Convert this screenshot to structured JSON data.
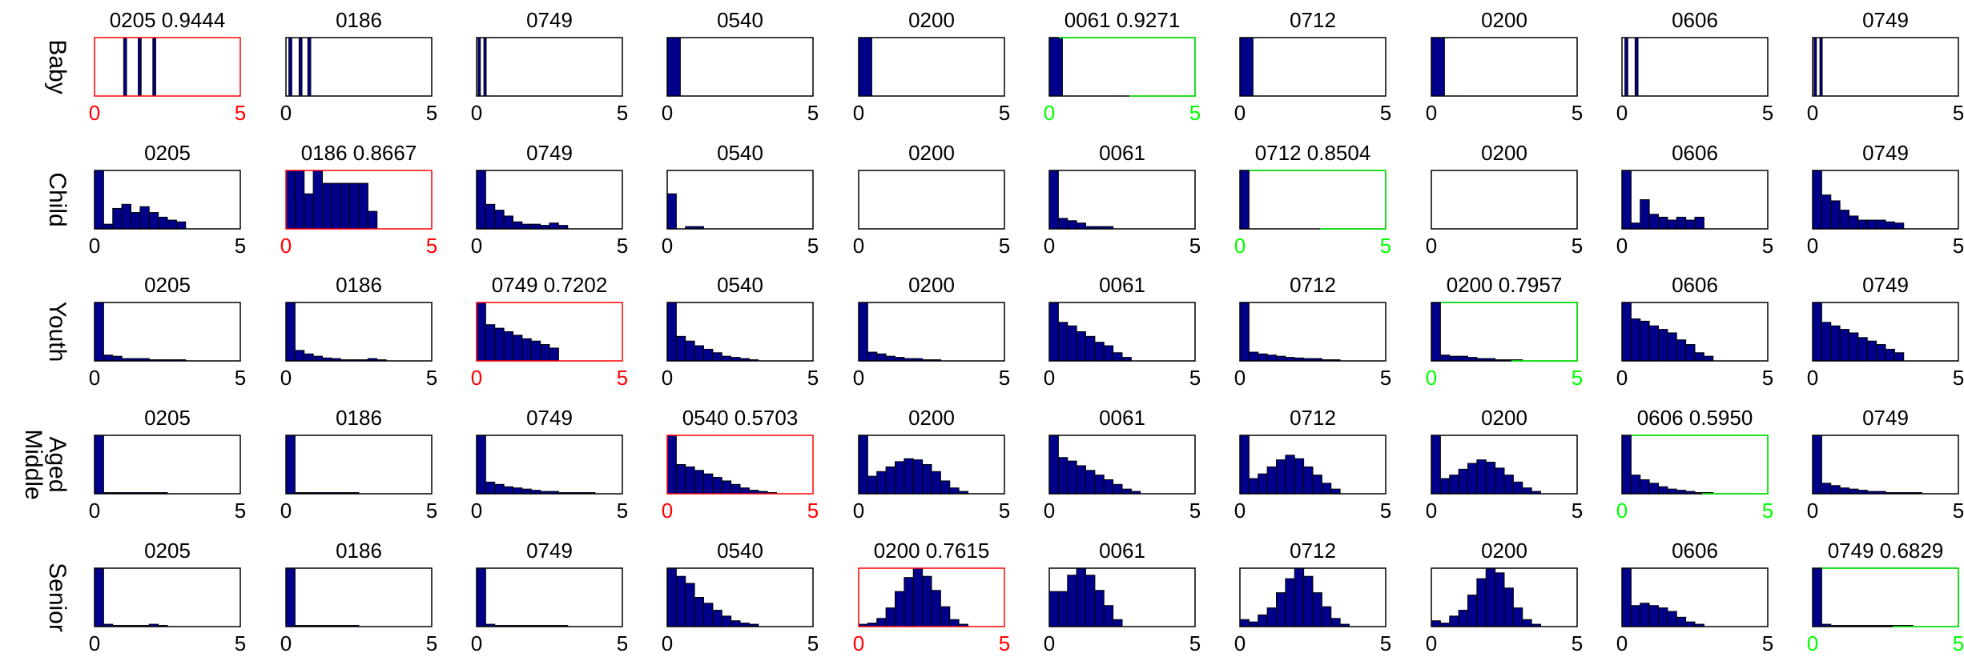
{
  "colors": {
    "bar": "#00008b",
    "edge": "#000000",
    "frame": "#000000",
    "red": "#ff0000",
    "green": "#00ff00"
  },
  "rows": [
    {
      "label": [
        "Baby"
      ]
    },
    {
      "label": [
        "Child"
      ]
    },
    {
      "label": [
        "Youth"
      ]
    },
    {
      "label": [
        "Middle",
        "Aged"
      ]
    },
    {
      "label": [
        "Senior"
      ]
    }
  ],
  "chart_data": {
    "type": "bar",
    "grid": false,
    "xlim": [
      0,
      5
    ],
    "xticks": [
      "0",
      "5"
    ],
    "bin_width": 0.3125,
    "panels": [
      [
        {
          "title": "0205 0.9444",
          "hl": "red",
          "bars": [
            {
              "x": 1.0,
              "w": 0.1,
              "h": 1
            },
            {
              "x": 1.5,
              "w": 0.1,
              "h": 1
            },
            {
              "x": 2.0,
              "w": 0.1,
              "h": 1
            }
          ]
        },
        {
          "title": "0186",
          "hl": "",
          "bars": [
            {
              "x": 0.1,
              "w": 0.1,
              "h": 1
            },
            {
              "x": 0.45,
              "w": 0.1,
              "h": 1
            },
            {
              "x": 0.75,
              "w": 0.1,
              "h": 1
            }
          ]
        },
        {
          "title": "0749",
          "hl": "",
          "bars": [
            {
              "x": 0.05,
              "w": 0.08,
              "h": 1
            },
            {
              "x": 0.25,
              "w": 0.08,
              "h": 1
            }
          ]
        },
        {
          "title": "0540",
          "hl": "",
          "bars": [
            {
              "x": 0,
              "w": 0.45,
              "h": 1
            }
          ]
        },
        {
          "title": "0200",
          "hl": "",
          "bars": [
            {
              "x": 0,
              "w": 0.45,
              "h": 1
            }
          ]
        },
        {
          "title": "0061 0.9271",
          "hl": "green",
          "bars": [
            {
              "x": 0,
              "w": 0.45,
              "h": 1
            }
          ]
        },
        {
          "title": "0712",
          "hl": "",
          "bars": [
            {
              "x": 0,
              "w": 0.45,
              "h": 1
            }
          ]
        },
        {
          "title": "0200",
          "hl": "",
          "bars": [
            {
              "x": 0,
              "w": 0.45,
              "h": 1
            }
          ]
        },
        {
          "title": "0606",
          "hl": "",
          "bars": [
            {
              "x": 0.1,
              "w": 0.1,
              "h": 1
            },
            {
              "x": 0.45,
              "w": 0.1,
              "h": 1
            }
          ]
        },
        {
          "title": "0749",
          "hl": "",
          "bars": [
            {
              "x": 0.05,
              "w": 0.08,
              "h": 1
            },
            {
              "x": 0.25,
              "w": 0.08,
              "h": 1
            }
          ]
        }
      ],
      [
        {
          "title": "0205",
          "hl": "",
          "hist": [
            1.0,
            0.08,
            0.35,
            0.42,
            0.28,
            0.38,
            0.28,
            0.2,
            0.15,
            0.12
          ]
        },
        {
          "title": "0186 0.8667",
          "hl": "red",
          "hist": [
            1.0,
            1.0,
            0.6,
            1.0,
            0.78,
            0.78,
            0.78,
            0.78,
            0.78,
            0.3
          ]
        },
        {
          "title": "0749",
          "hl": "",
          "hist": [
            1.0,
            0.42,
            0.32,
            0.22,
            0.12,
            0.08,
            0.08,
            0.06,
            0.1,
            0.06
          ]
        },
        {
          "title": "0540",
          "hl": "",
          "hist": [
            0.6,
            0,
            0.04,
            0.04
          ]
        },
        {
          "title": "0200",
          "hl": "",
          "hist": []
        },
        {
          "title": "0061",
          "hl": "",
          "hist": [
            1.0,
            0.18,
            0.14,
            0.1,
            0.04,
            0.04,
            0.04
          ]
        },
        {
          "title": "0712 0.8504",
          "hl": "green",
          "hist": [
            1.0
          ]
        },
        {
          "title": "0200",
          "hl": "",
          "hist": []
        },
        {
          "title": "0606",
          "hl": "",
          "hist": [
            1.0,
            0.1,
            0.5,
            0.25,
            0.2,
            0.15,
            0.2,
            0.15,
            0.2
          ]
        },
        {
          "title": "0749",
          "hl": "",
          "hist": [
            1.0,
            0.58,
            0.48,
            0.32,
            0.22,
            0.15,
            0.15,
            0.15,
            0.12,
            0.1
          ]
        }
      ],
      [
        {
          "title": "0205",
          "hl": "",
          "hist": [
            1.0,
            0.1,
            0.08,
            0.04,
            0.04,
            0.04,
            0.02,
            0.02,
            0.02,
            0.02
          ]
        },
        {
          "title": "0186",
          "hl": "",
          "hist": [
            1.0,
            0.18,
            0.12,
            0.08,
            0.05,
            0.04,
            0.02,
            0.02,
            0.02,
            0.04,
            0.02
          ]
        },
        {
          "title": "0749 0.7202",
          "hl": "red",
          "hist": [
            1.0,
            0.62,
            0.56,
            0.5,
            0.44,
            0.38,
            0.34,
            0.28,
            0.22
          ]
        },
        {
          "title": "0540",
          "hl": "",
          "hist": [
            1.0,
            0.42,
            0.34,
            0.26,
            0.2,
            0.14,
            0.08,
            0.06,
            0.04,
            0.02
          ]
        },
        {
          "title": "0200",
          "hl": "",
          "hist": [
            1.0,
            0.15,
            0.12,
            0.08,
            0.06,
            0.04,
            0.04,
            0.02,
            0.02
          ]
        },
        {
          "title": "0061",
          "hl": "",
          "hist": [
            1.0,
            0.66,
            0.6,
            0.5,
            0.42,
            0.32,
            0.26,
            0.14,
            0.06
          ]
        },
        {
          "title": "0712",
          "hl": "",
          "hist": [
            1.0,
            0.15,
            0.12,
            0.1,
            0.08,
            0.06,
            0.05,
            0.04,
            0.04,
            0.02,
            0.02
          ]
        },
        {
          "title": "0200 0.7957",
          "hl": "green",
          "hist": [
            1.0,
            0.1,
            0.08,
            0.08,
            0.06,
            0.04,
            0.04,
            0.02,
            0.02,
            0.02
          ]
        },
        {
          "title": "0606",
          "hl": "",
          "hist": [
            1.0,
            0.72,
            0.68,
            0.6,
            0.54,
            0.48,
            0.36,
            0.28,
            0.14,
            0.08
          ]
        },
        {
          "title": "0749",
          "hl": "",
          "hist": [
            1.0,
            0.66,
            0.6,
            0.54,
            0.48,
            0.4,
            0.34,
            0.28,
            0.2,
            0.14
          ]
        }
      ],
      [
        {
          "title": "0205",
          "hl": "",
          "hist": [
            1.0,
            0.02,
            0.02,
            0.02,
            0.02,
            0.02,
            0.02,
            0.02
          ]
        },
        {
          "title": "0186",
          "hl": "",
          "hist": [
            1.0,
            0.02,
            0.02,
            0.02,
            0.02,
            0.02,
            0.02,
            0.02
          ]
        },
        {
          "title": "0749",
          "hl": "",
          "hist": [
            1.0,
            0.2,
            0.16,
            0.12,
            0.1,
            0.08,
            0.06,
            0.04,
            0.04,
            0.02,
            0.02,
            0.02,
            0.02
          ]
        },
        {
          "title": "0540 0.5703",
          "hl": "red",
          "hist": [
            1.0,
            0.5,
            0.46,
            0.4,
            0.34,
            0.28,
            0.22,
            0.16,
            0.1,
            0.06,
            0.04,
            0.02
          ]
        },
        {
          "title": "0200",
          "hl": "",
          "hist": [
            1.0,
            0.3,
            0.38,
            0.46,
            0.55,
            0.6,
            0.58,
            0.5,
            0.38,
            0.22,
            0.1,
            0.04
          ]
        },
        {
          "title": "0061",
          "hl": "",
          "hist": [
            1.0,
            0.62,
            0.56,
            0.48,
            0.4,
            0.32,
            0.24,
            0.16,
            0.08,
            0.04
          ]
        },
        {
          "title": "0712",
          "hl": "",
          "hist": [
            1.0,
            0.26,
            0.34,
            0.46,
            0.58,
            0.66,
            0.6,
            0.46,
            0.32,
            0.18,
            0.08
          ]
        },
        {
          "title": "0200",
          "hl": "",
          "hist": [
            1.0,
            0.26,
            0.32,
            0.42,
            0.52,
            0.58,
            0.54,
            0.44,
            0.32,
            0.2,
            0.1,
            0.04
          ]
        },
        {
          "title": "0606 0.5950",
          "hl": "green",
          "hist": [
            1.0,
            0.32,
            0.24,
            0.18,
            0.12,
            0.08,
            0.06,
            0.04,
            0.02,
            0.02
          ]
        },
        {
          "title": "0749",
          "hl": "",
          "hist": [
            1.0,
            0.18,
            0.14,
            0.1,
            0.08,
            0.06,
            0.04,
            0.04,
            0.02,
            0.02,
            0.02,
            0.02
          ]
        }
      ],
      [
        {
          "title": "0205",
          "hl": "",
          "hist": [
            1.0,
            0.04,
            0.02,
            0.02,
            0.02,
            0.02,
            0.04,
            0.02
          ]
        },
        {
          "title": "0186",
          "hl": "",
          "hist": [
            1.0,
            0.02,
            0.02,
            0.02,
            0.02,
            0.02,
            0.02,
            0.02
          ]
        },
        {
          "title": "0749",
          "hl": "",
          "hist": [
            1.0,
            0.04,
            0.02,
            0.02,
            0.02,
            0.02,
            0.02,
            0.02,
            0.02,
            0.02
          ]
        },
        {
          "title": "0540",
          "hl": "",
          "hist": [
            1.0,
            0.86,
            0.74,
            0.5,
            0.4,
            0.28,
            0.18,
            0.1,
            0.06,
            0.04
          ]
        },
        {
          "title": "0200 0.7615",
          "hl": "red",
          "hist": [
            0.04,
            0.06,
            0.14,
            0.32,
            0.6,
            0.84,
            1.0,
            0.86,
            0.62,
            0.34,
            0.12,
            0.04
          ]
        },
        {
          "title": "0061",
          "hl": "",
          "hist": [
            0.6,
            0.6,
            0.88,
            1.0,
            0.88,
            0.62,
            0.36,
            0.12
          ]
        },
        {
          "title": "0712",
          "hl": "",
          "hist": [
            0.12,
            0.08,
            0.2,
            0.32,
            0.58,
            0.82,
            1.0,
            0.86,
            0.58,
            0.34,
            0.14,
            0.04
          ]
        },
        {
          "title": "0200",
          "hl": "",
          "hist": [
            0.1,
            0.06,
            0.18,
            0.28,
            0.54,
            0.82,
            1.0,
            0.92,
            0.66,
            0.32,
            0.12,
            0.04
          ]
        },
        {
          "title": "0606",
          "hl": "",
          "hist": [
            1.0,
            0.36,
            0.4,
            0.36,
            0.32,
            0.26,
            0.16,
            0.08,
            0.04
          ]
        },
        {
          "title": "0749 0.6829",
          "hl": "green",
          "hist": [
            1.0,
            0.04,
            0.02,
            0.02,
            0.02,
            0.02,
            0.02,
            0.02,
            0.02,
            0.02,
            0.02
          ]
        }
      ]
    ]
  }
}
